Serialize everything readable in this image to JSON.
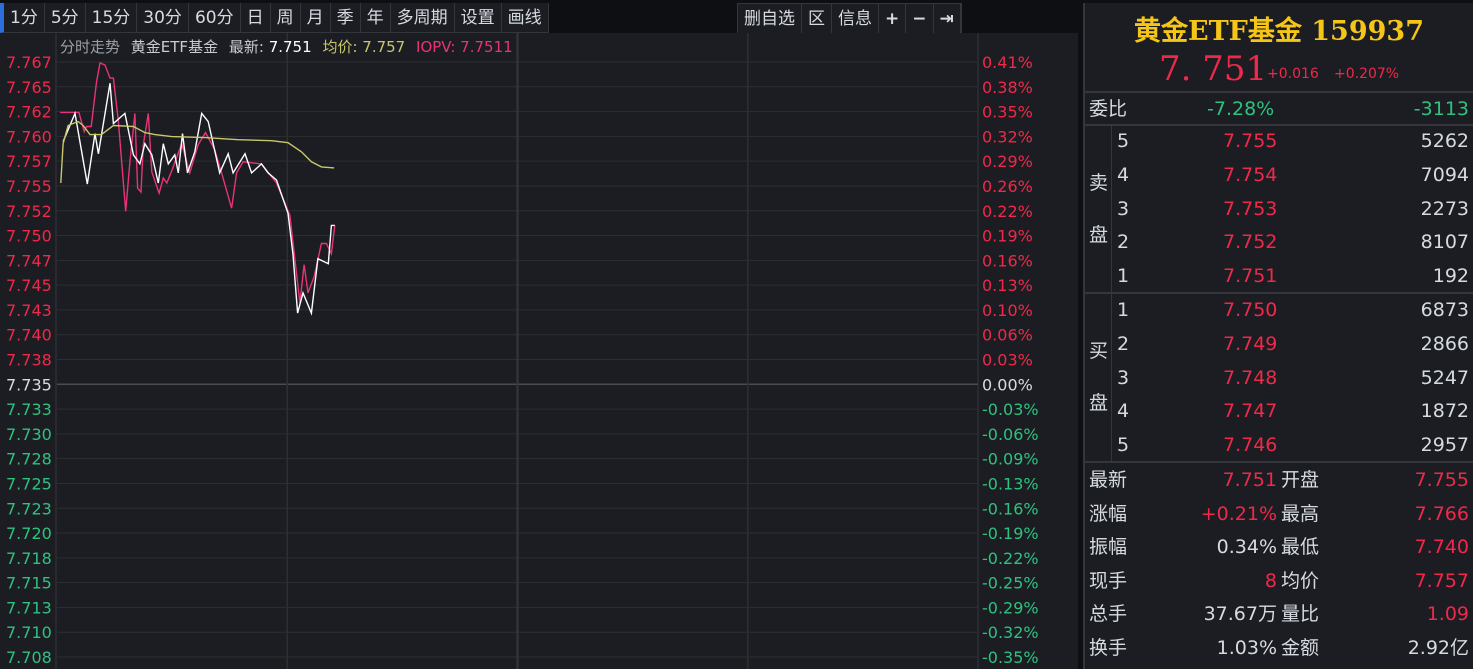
{
  "toolbar": {
    "periods": [
      "1分",
      "5分",
      "15分",
      "30分",
      "60分",
      "日",
      "周",
      "月",
      "季",
      "年",
      "多周期",
      "设置",
      "画线"
    ],
    "actions": [
      "删自选",
      "区",
      "信息",
      "+",
      "−",
      "⇥"
    ]
  },
  "chart_header": {
    "title": "分时走势",
    "name": "黄金ETF基金",
    "latest_label": "最新:",
    "latest": "7.751",
    "avg_label": "均价:",
    "avg": "7.757",
    "iopv_label": "IOPV:",
    "iopv": "7.7511"
  },
  "colors": {
    "price": "#ffffff",
    "avg": "#c8c86a",
    "iopv": "#e8337a",
    "up": "#f0284a",
    "down": "#2ec27e",
    "title": "#f5c518"
  },
  "chart_data": {
    "type": "line",
    "xlabel": "",
    "ylabel": "",
    "x_unit": "minute index",
    "xlim": [
      0,
      240
    ],
    "ylim": [
      7.708,
      7.767
    ],
    "base": 7.735,
    "grid": true,
    "left_ticks": [
      "7.767",
      "7.765",
      "7.762",
      "7.760",
      "7.757",
      "7.755",
      "7.752",
      "7.750",
      "7.747",
      "7.745",
      "7.743",
      "7.740",
      "7.738",
      "7.735",
      "7.733",
      "7.730",
      "7.728",
      "7.725",
      "7.723",
      "7.720",
      "7.718",
      "7.715",
      "7.713",
      "7.710",
      "7.708"
    ],
    "right_ticks": [
      "0.41%",
      "0.38%",
      "0.35%",
      "0.32%",
      "0.29%",
      "0.26%",
      "0.22%",
      "0.19%",
      "0.16%",
      "0.13%",
      "0.10%",
      "0.06%",
      "0.03%",
      "0.00%",
      "-0.03%",
      "-0.06%",
      "-0.09%",
      "-0.13%",
      "-0.16%",
      "-0.19%",
      "-0.22%",
      "-0.25%",
      "-0.29%",
      "-0.32%",
      "-0.35%"
    ],
    "series": [
      {
        "name": "最新",
        "color": "#ffffff",
        "x": [
          1.6,
          4.7,
          7.9,
          9.9,
          10.8,
          13.8,
          14.7,
          17.7,
          19.9,
          21.6,
          22.9,
          24.7,
          26.4,
          27.7,
          29,
          30.7,
          31.6,
          32.7,
          34,
          35.9,
          37.7,
          39.4,
          42.4,
          44.6,
          45.9,
          49,
          50.7,
          53.3,
          55,
          57.2,
          60.2,
          61.5,
          62.7,
          64.1,
          66.3,
          68,
          70.7,
          71.5,
          72.4
        ],
        "y": [
          7.7591,
          7.7619,
          7.7549,
          7.7599,
          7.7579,
          7.7649,
          7.7609,
          7.7619,
          7.7578,
          7.7569,
          7.7589,
          7.7578,
          7.755,
          7.7589,
          7.7569,
          7.7578,
          7.756,
          7.7599,
          7.756,
          7.7581,
          7.7619,
          7.7611,
          7.756,
          7.7579,
          7.756,
          7.7579,
          7.756,
          7.7569,
          7.756,
          7.7553,
          7.752,
          7.7479,
          7.7421,
          7.7441,
          7.7421,
          7.7475,
          7.747,
          7.7508,
          7.7508
        ]
      },
      {
        "name": "均价",
        "color": "#c8c86a",
        "x": [
          1,
          1.6,
          2.9,
          5.5,
          6.8,
          8.6,
          11.6,
          14.7,
          19.9,
          22.9,
          25.5,
          29.9,
          38.5,
          47.2,
          55.9,
          60.2,
          63.7,
          66.3,
          68.9,
          72.2
        ],
        "y": [
          7.755,
          7.7589,
          7.7607,
          7.7611,
          7.7607,
          7.7598,
          7.7598,
          7.7607,
          7.7606,
          7.76,
          7.7598,
          7.7596,
          7.7595,
          7.7593,
          7.7592,
          7.759,
          7.7581,
          7.7571,
          7.7566,
          7.7565
        ]
      },
      {
        "name": "IOPV",
        "color": "#e8337a",
        "x": [
          0.8,
          5.7,
          7.1,
          7.7,
          8.9,
          10.3,
          11.2,
          12.5,
          13.8,
          14.7,
          16,
          17.9,
          19,
          20.3,
          21,
          21.9,
          22.5,
          23.8,
          24.7,
          26.6,
          27.7,
          28.6,
          30,
          32.5,
          34.6,
          36.8,
          38.7,
          41.1,
          42.9,
          45.5,
          46.8,
          48.5,
          53.3,
          57.2,
          60.7,
          63.3,
          64.4,
          65.4,
          67,
          68.9,
          70.2,
          71.5,
          72.4
        ],
        "y": [
          7.762,
          7.762,
          7.7601,
          7.7606,
          7.7606,
          7.765,
          7.7669,
          7.7667,
          7.7654,
          7.7654,
          7.7611,
          7.7522,
          7.7571,
          7.7619,
          7.7545,
          7.7541,
          7.7588,
          7.7619,
          7.7561,
          7.754,
          7.7555,
          7.755,
          7.7563,
          7.7589,
          7.756,
          7.7588,
          7.76,
          7.7583,
          7.756,
          7.7525,
          7.756,
          7.7571,
          7.7569,
          7.755,
          7.7518,
          7.7431,
          7.7469,
          7.7441,
          7.7457,
          7.749,
          7.749,
          7.748,
          7.7508
        ]
      }
    ]
  },
  "quote": {
    "title": "黄金ETF基金 159937",
    "price": "7. 751",
    "change": "+0.016",
    "change_pct": "+0.207%",
    "ratio_label": "委比",
    "ratio_pct": "-7.28%",
    "ratio_diff": "-3113",
    "sell_label": [
      "卖",
      "盘"
    ],
    "buy_label": [
      "买",
      "盘"
    ],
    "asks": [
      {
        "level": "5",
        "price": "7.755",
        "vol": "5262"
      },
      {
        "level": "4",
        "price": "7.754",
        "vol": "7094"
      },
      {
        "level": "3",
        "price": "7.753",
        "vol": "2273"
      },
      {
        "level": "2",
        "price": "7.752",
        "vol": "8107"
      },
      {
        "level": "1",
        "price": "7.751",
        "vol": "192"
      }
    ],
    "bids": [
      {
        "level": "1",
        "price": "7.750",
        "vol": "6873"
      },
      {
        "level": "2",
        "price": "7.749",
        "vol": "2866"
      },
      {
        "level": "3",
        "price": "7.748",
        "vol": "5247"
      },
      {
        "level": "4",
        "price": "7.747",
        "vol": "1872"
      },
      {
        "level": "5",
        "price": "7.746",
        "vol": "2957"
      }
    ],
    "stats": [
      {
        "l1": "最新",
        "v1": "7.751",
        "c1": "red",
        "l2": "开盘",
        "v2": "7.755",
        "c2": "red"
      },
      {
        "l1": "涨幅",
        "v1": "+0.21%",
        "c1": "red",
        "l2": "最高",
        "v2": "7.766",
        "c2": "red"
      },
      {
        "l1": "振幅",
        "v1": "0.34%",
        "c1": "",
        "l2": "最低",
        "v2": "7.740",
        "c2": "red"
      },
      {
        "l1": "现手",
        "v1": "8",
        "c1": "red",
        "l2": "均价",
        "v2": "7.757",
        "c2": "red"
      },
      {
        "l1": "总手",
        "v1": "37.67万",
        "c1": "",
        "l2": "量比",
        "v2": "1.09",
        "c2": "red"
      },
      {
        "l1": "换手",
        "v1": "1.03%",
        "c1": "",
        "l2": "金额",
        "v2": "2.92亿",
        "c2": ""
      }
    ]
  }
}
